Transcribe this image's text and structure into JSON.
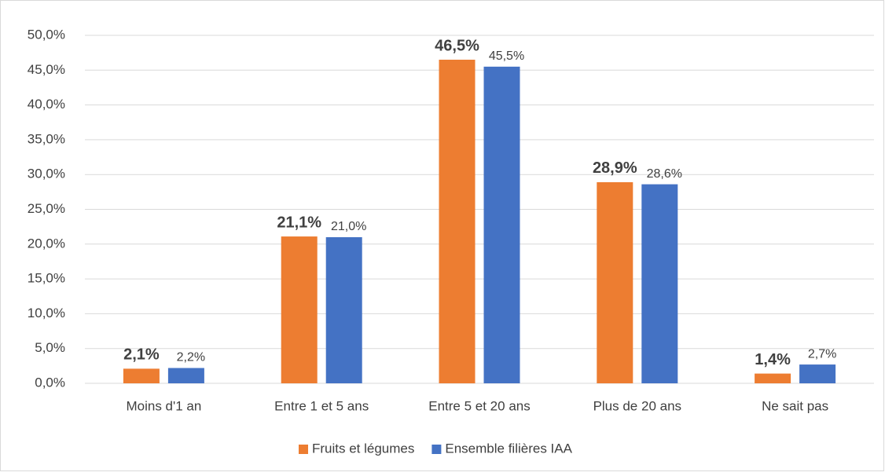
{
  "chart_data": {
    "type": "bar",
    "categories": [
      "Moins d'1 an",
      "Entre 1 et 5 ans",
      "Entre 5 et 20 ans",
      "Plus de 20 ans",
      "Ne sait pas"
    ],
    "series": [
      {
        "name": "Fruits et légumes",
        "color": "#ed7d31",
        "values": [
          2.1,
          21.1,
          46.5,
          28.9,
          1.4
        ],
        "value_labels": [
          "2,1%",
          "21,1%",
          "46,5%",
          "28,9%",
          "1,4%"
        ]
      },
      {
        "name": "Ensemble filières IAA",
        "color": "#4472c4",
        "values": [
          2.2,
          21.0,
          45.5,
          28.6,
          2.7
        ],
        "value_labels": [
          "2,2%",
          "21,0%",
          "45,5%",
          "28,6%",
          "2,7%"
        ]
      }
    ],
    "ylim": [
      0,
      50
    ],
    "yticks": [
      {
        "value": 0,
        "label": "0,0%"
      },
      {
        "value": 5,
        "label": "5,0%"
      },
      {
        "value": 10,
        "label": "10,0%"
      },
      {
        "value": 15,
        "label": "15,0%"
      },
      {
        "value": 20,
        "label": "20,0%"
      },
      {
        "value": 25,
        "label": "25,0%"
      },
      {
        "value": 30,
        "label": "30,0%"
      },
      {
        "value": 35,
        "label": "35,0%"
      },
      {
        "value": 40,
        "label": "40,0%"
      },
      {
        "value": 45,
        "label": "45,0%"
      },
      {
        "value": 50,
        "label": "50,0%"
      }
    ],
    "grid": true,
    "legend": "bottom"
  }
}
